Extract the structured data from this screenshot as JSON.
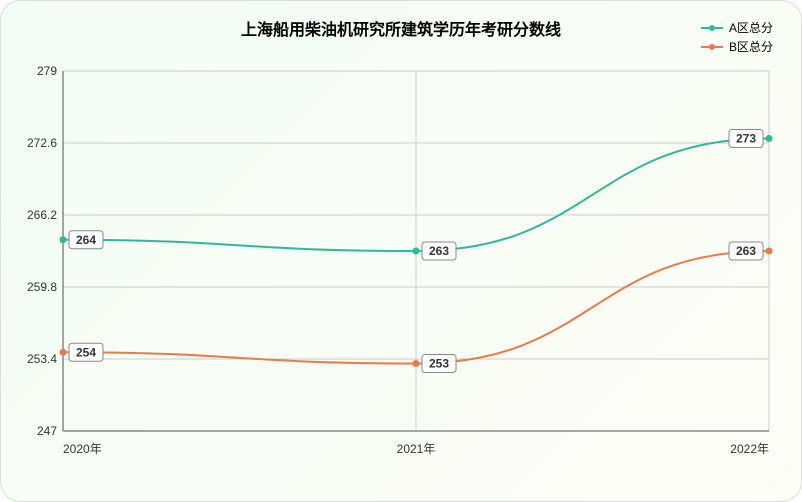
{
  "title": "上海船用柴油机研究所建筑学历年考研分数线",
  "title_fontsize": 16,
  "background_gradient": {
    "from": "#f2fdf4",
    "to": "#fdfff6",
    "angle": 135
  },
  "border_color": "#dddddd",
  "legend": {
    "items": [
      {
        "label": "A区总分",
        "color": "#2fb89a"
      },
      {
        "label": "B区总分",
        "color": "#e87b4c"
      }
    ]
  },
  "chart": {
    "type": "line",
    "categories": [
      "2020年",
      "2021年",
      "2022年"
    ],
    "ylim": [
      247,
      279
    ],
    "ytick_step": 6.4,
    "yticks": [
      247,
      253.4,
      259.8,
      266.2,
      272.6,
      279
    ],
    "grid_color": "#cccccc",
    "axis_color": "#888888",
    "label_fontsize": 12,
    "line_width": 2,
    "marker_radius": 3.5,
    "series": [
      {
        "name": "A区总分",
        "color": "#2fb89a",
        "values": [
          264,
          263,
          273
        ],
        "labels": [
          "264",
          "263",
          "273"
        ]
      },
      {
        "name": "B区总分",
        "color": "#e87b4c",
        "values": [
          254,
          253,
          263
        ],
        "labels": [
          "254",
          "253",
          "263"
        ]
      }
    ]
  }
}
